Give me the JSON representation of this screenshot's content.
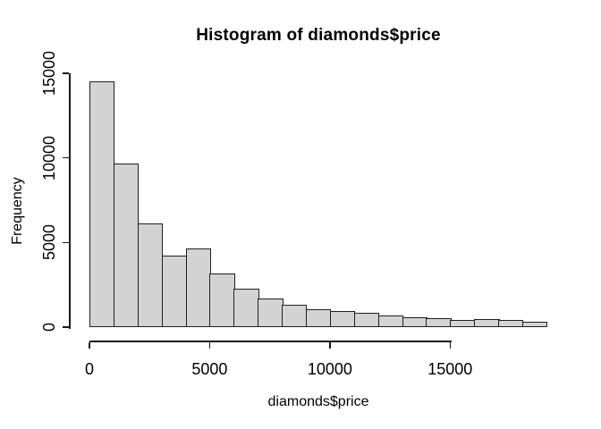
{
  "title": "Histogram of diamonds$price",
  "chart_data": {
    "type": "bar",
    "subtype": "histogram",
    "title": "Histogram of diamonds$price",
    "xlabel": "diamonds$price",
    "ylabel": "Frequency",
    "bin_width": 1000,
    "bin_edges": [
      0,
      1000,
      2000,
      3000,
      4000,
      5000,
      6000,
      7000,
      8000,
      9000,
      10000,
      11000,
      12000,
      13000,
      14000,
      15000,
      16000,
      17000,
      18000,
      19000
    ],
    "categories": [
      "0-1000",
      "1000-2000",
      "2000-3000",
      "3000-4000",
      "4000-5000",
      "5000-6000",
      "6000-7000",
      "7000-8000",
      "8000-9000",
      "9000-10000",
      "10000-11000",
      "11000-12000",
      "12000-13000",
      "13000-14000",
      "14000-15000",
      "15000-16000",
      "16000-17000",
      "17000-18000",
      "18000-19000"
    ],
    "values": [
      14524,
      9683,
      6129,
      4225,
      4665,
      3170,
      2278,
      1669,
      1307,
      1076,
      934,
      825,
      702,
      603,
      513,
      449,
      455,
      434,
      299
    ],
    "x_ticks": [
      0,
      5000,
      10000,
      15000
    ],
    "x_tick_labels": [
      "0",
      "5000",
      "10000",
      "15000"
    ],
    "y_ticks": [
      0,
      5000,
      10000,
      15000
    ],
    "y_tick_labels": [
      "0",
      "5000",
      "10000",
      "15000"
    ],
    "xlim": [
      0,
      19000
    ],
    "ylim": [
      0,
      15000
    ],
    "grid": false,
    "legend": "none",
    "colors": {
      "bar_fill": "#d3d3d3",
      "bar_border": "#1f1f1f",
      "axis": "#1a1a1a",
      "text": "#000000",
      "background": "#ffffff"
    }
  }
}
